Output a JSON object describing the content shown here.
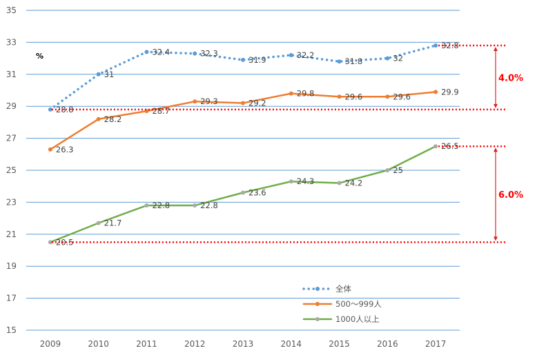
{
  "chart_data": {
    "type": "line",
    "unit_label": "%",
    "categories": [
      "2009",
      "2010",
      "2011",
      "2012",
      "2013",
      "2014",
      "2015",
      "2016",
      "2017"
    ],
    "ylim": [
      15,
      35
    ],
    "yticks": [
      15,
      17,
      19,
      21,
      23,
      25,
      27,
      29,
      31,
      33,
      35
    ],
    "grid": true,
    "legend_position": "bottom-right",
    "series": [
      {
        "name": "全体",
        "values": [
          28.8,
          31,
          32.4,
          32.3,
          31.9,
          32.2,
          31.8,
          32,
          32.8
        ],
        "labels": [
          "28.8",
          "31",
          "32.4",
          "32.3",
          "31.9",
          "32.2",
          "31.8",
          "32",
          "32.8"
        ],
        "color": "#5b9bd5",
        "style": "dotted"
      },
      {
        "name": "500～999人",
        "values": [
          26.3,
          28.2,
          28.7,
          29.3,
          29.2,
          29.8,
          29.6,
          29.6,
          29.9
        ],
        "labels": [
          "26.3",
          "28.2",
          "28.7",
          "29.3",
          "29.2",
          "29.8",
          "29.6",
          "29.6",
          "29.9"
        ],
        "color": "#ed7d31",
        "style": "solid"
      },
      {
        "name": "1000人以上",
        "values": [
          20.5,
          21.7,
          22.8,
          22.8,
          23.6,
          24.3,
          24.2,
          25,
          26.5
        ],
        "labels": [
          "20.5",
          "21.7",
          "22.8",
          "22.8",
          "23.6",
          "24.3",
          "24.2",
          "25",
          "26.5"
        ],
        "color": "#70ad47",
        "style": "solid"
      }
    ],
    "annotations": [
      {
        "label": "4.0%",
        "from": 28.8,
        "to": 32.8,
        "color": "#ff0000"
      },
      {
        "label": "6.0%",
        "from": 20.5,
        "to": 26.5,
        "color": "#ff0000"
      }
    ],
    "gridline_color": "#5b9bd5",
    "tick_color": "#595959"
  }
}
